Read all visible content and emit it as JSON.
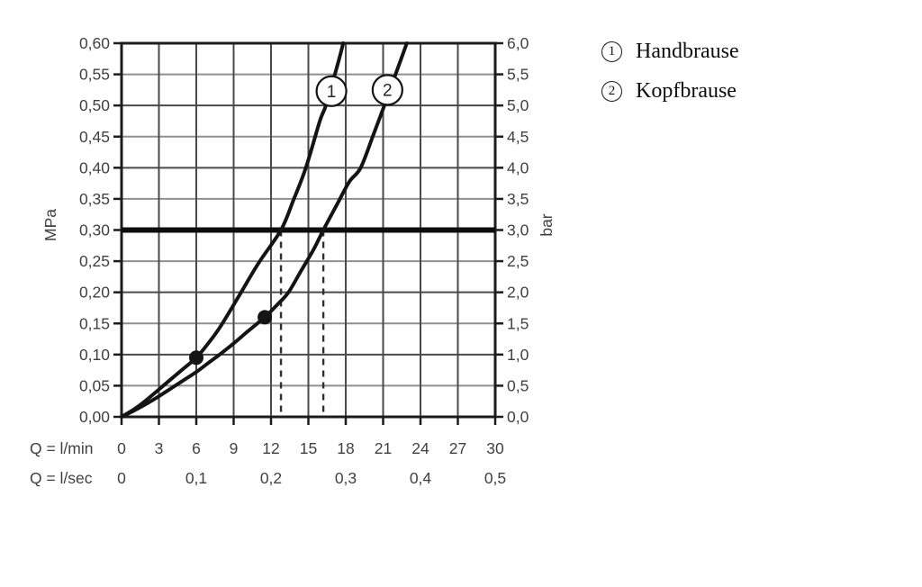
{
  "chart_data": {
    "type": "line",
    "title": "",
    "grid": true,
    "x_axis": {
      "label_lmin": "Q = l/min",
      "label_lsec": "Q = l/sec",
      "max": 30,
      "ticks_lmin": [
        "0",
        "3",
        "6",
        "9",
        "12",
        "15",
        "18",
        "21",
        "24",
        "27",
        "30"
      ],
      "ticks_lsec": [
        {
          "label": "0",
          "q": 0
        },
        {
          "label": "0,1",
          "q": 6
        },
        {
          "label": "0,2",
          "q": 12
        },
        {
          "label": "0,3",
          "q": 18
        },
        {
          "label": "0,4",
          "q": 24
        },
        {
          "label": "0,5",
          "q": 30
        }
      ]
    },
    "y_axis_left": {
      "label": "MPa",
      "max": 0.6,
      "ticks": [
        "0,60",
        "0,55",
        "0,50",
        "0,45",
        "0,40",
        "0,35",
        "0,30",
        "0,25",
        "0,20",
        "0,15",
        "0,10",
        "0,05",
        "0,00"
      ]
    },
    "y_axis_right": {
      "label": "bar",
      "max": 6.0,
      "ticks": [
        "6,0",
        "5,5",
        "5,0",
        "4,5",
        "4,0",
        "3,5",
        "3,0",
        "2,5",
        "2,0",
        "1,5",
        "1,0",
        "0,5",
        "0,0"
      ]
    },
    "reference_line_mpa": 0.3,
    "dashed_lines_q_lmin": [
      12.8,
      16.2
    ],
    "series": [
      {
        "id": "1",
        "name": "Handbrause",
        "points": [
          [
            0,
            0
          ],
          [
            1,
            0.012
          ],
          [
            2,
            0.027
          ],
          [
            3,
            0.044
          ],
          [
            4,
            0.061
          ],
          [
            5,
            0.078
          ],
          [
            6,
            0.095
          ],
          [
            7,
            0.119
          ],
          [
            8,
            0.147
          ],
          [
            9.6,
            0.2
          ],
          [
            11,
            0.247
          ],
          [
            12.8,
            0.3
          ],
          [
            13.8,
            0.348
          ],
          [
            14.8,
            0.4
          ],
          [
            15.9,
            0.474
          ],
          [
            16.4,
            0.5
          ],
          [
            17.2,
            0.555
          ],
          [
            17.8,
            0.6
          ]
        ],
        "marker": {
          "q": 6,
          "mpa": 0.095
        },
        "badge_at": {
          "q": 16.85,
          "mpa": 0.523
        }
      },
      {
        "id": "2",
        "name": "Kopfbrause",
        "points": [
          [
            0,
            0
          ],
          [
            1,
            0.01
          ],
          [
            2,
            0.021
          ],
          [
            3,
            0.033
          ],
          [
            4,
            0.046
          ],
          [
            5,
            0.059
          ],
          [
            6,
            0.072
          ],
          [
            7,
            0.087
          ],
          [
            8,
            0.102
          ],
          [
            9,
            0.118
          ],
          [
            10,
            0.135
          ],
          [
            11.5,
            0.16
          ],
          [
            12.5,
            0.18
          ],
          [
            13.4,
            0.2
          ],
          [
            14.4,
            0.234
          ],
          [
            15.4,
            0.268
          ],
          [
            16.2,
            0.3
          ],
          [
            17.4,
            0.345
          ],
          [
            18.3,
            0.378
          ],
          [
            19.2,
            0.4
          ],
          [
            20.2,
            0.452
          ],
          [
            21.1,
            0.5
          ],
          [
            22,
            0.55
          ],
          [
            22.9,
            0.6
          ]
        ],
        "marker": {
          "q": 11.5,
          "mpa": 0.16
        },
        "badge_at": {
          "q": 21.35,
          "mpa": 0.525
        }
      }
    ],
    "colors": {
      "curve": "#141414",
      "grid_major": "#4a4a4a",
      "grid_minor": "#8f8f8f",
      "frame": "#1c1c1c",
      "reference": "#0d0d0d",
      "label": "#414141",
      "badge_fill": "#ffffff"
    }
  },
  "legend": {
    "items": [
      {
        "num": "1",
        "label": "Handbrause"
      },
      {
        "num": "2",
        "label": "Kopfbrause"
      }
    ]
  }
}
